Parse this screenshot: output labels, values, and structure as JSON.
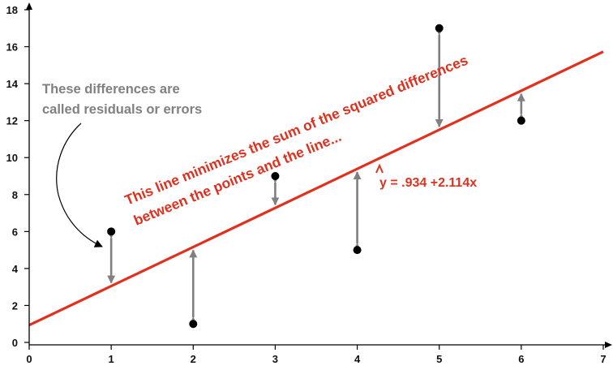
{
  "chart_data": {
    "type": "scatter",
    "x_ticks": [
      "0",
      "1",
      "2",
      "3",
      "4",
      "5",
      "6",
      "7"
    ],
    "y_ticks": [
      "0",
      "2",
      "4",
      "6",
      "8",
      "10",
      "12",
      "14",
      "16",
      "18"
    ],
    "xlim": [
      0,
      7
    ],
    "ylim": [
      0,
      18
    ],
    "grid": false,
    "points": [
      {
        "x": 1,
        "y": 6
      },
      {
        "x": 2,
        "y": 1
      },
      {
        "x": 3,
        "y": 9
      },
      {
        "x": 4,
        "y": 5
      },
      {
        "x": 5,
        "y": 17
      },
      {
        "x": 6,
        "y": 12
      }
    ],
    "regression": {
      "intercept": 0.934,
      "slope": 2.114
    },
    "annotations": {
      "residuals_line1": "These differences are",
      "residuals_line2": "called residuals or errors",
      "line_note1": "This line minimizes the sum of the squared differences",
      "line_note2": "between the points and the line...",
      "equation": "y = .934 +2.114x"
    },
    "colors": {
      "line": "#e0301e",
      "residual": "#808080",
      "point": "#000000",
      "axis": "#000000"
    }
  }
}
